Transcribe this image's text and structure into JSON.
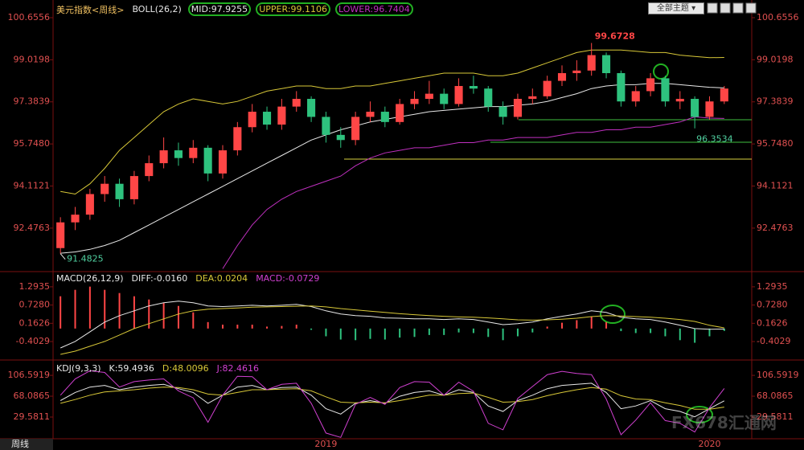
{
  "chart_data": [
    {
      "type": "candlestick",
      "title": "美元指数<周线>",
      "indicator": "BOLL(26,2)",
      "categories": [
        null,
        null,
        null,
        null,
        null,
        null,
        null,
        null,
        null,
        null,
        null,
        null,
        null,
        null,
        null,
        null,
        null,
        null,
        "2019",
        null,
        null,
        null,
        null,
        null,
        null,
        null,
        null,
        null,
        null,
        null,
        null,
        null,
        null,
        null,
        null,
        null,
        null,
        null,
        null,
        null,
        null,
        null,
        null,
        null,
        "2020",
        null
      ],
      "candles": [
        [
          91.7,
          92.9,
          91.4825,
          92.7
        ],
        [
          92.7,
          93.3,
          92.4,
          93.0
        ],
        [
          93.0,
          94.0,
          92.8,
          93.8
        ],
        [
          93.8,
          94.5,
          93.5,
          94.2
        ],
        [
          94.2,
          94.4,
          93.3,
          93.6
        ],
        [
          93.6,
          94.7,
          93.4,
          94.5
        ],
        [
          94.5,
          95.3,
          94.3,
          95.0
        ],
        [
          95.0,
          96.0,
          94.8,
          95.5
        ],
        [
          95.5,
          95.8,
          94.9,
          95.2
        ],
        [
          95.2,
          95.9,
          95.0,
          95.6
        ],
        [
          95.6,
          95.7,
          94.3,
          94.6
        ],
        [
          94.6,
          95.7,
          94.4,
          95.5
        ],
        [
          95.5,
          96.6,
          95.3,
          96.4
        ],
        [
          96.4,
          97.3,
          96.2,
          97.0
        ],
        [
          97.0,
          97.2,
          96.3,
          96.5
        ],
        [
          96.5,
          97.5,
          96.3,
          97.2
        ],
        [
          97.2,
          97.8,
          97.0,
          97.5
        ],
        [
          97.5,
          97.6,
          96.6,
          96.8
        ],
        [
          96.8,
          97.0,
          95.8,
          96.1
        ],
        [
          96.1,
          96.4,
          95.6,
          95.9
        ],
        [
          95.9,
          97.0,
          95.7,
          96.8
        ],
        [
          96.8,
          97.4,
          96.6,
          97.0
        ],
        [
          97.0,
          97.2,
          96.4,
          96.6
        ],
        [
          96.6,
          97.5,
          96.5,
          97.3
        ],
        [
          97.3,
          97.8,
          97.1,
          97.5
        ],
        [
          97.5,
          98.2,
          97.3,
          97.7
        ],
        [
          97.7,
          97.9,
          97.1,
          97.3
        ],
        [
          97.3,
          98.3,
          97.2,
          98.0
        ],
        [
          98.0,
          98.4,
          97.7,
          97.9
        ],
        [
          97.9,
          98.0,
          97.0,
          97.2
        ],
        [
          97.2,
          97.4,
          96.5,
          96.8
        ],
        [
          96.8,
          97.7,
          96.7,
          97.5
        ],
        [
          97.5,
          97.9,
          97.3,
          97.6
        ],
        [
          97.6,
          98.4,
          97.5,
          98.2
        ],
        [
          98.2,
          98.8,
          98.0,
          98.5
        ],
        [
          98.5,
          99.0,
          98.2,
          98.6
        ],
        [
          98.6,
          99.6728,
          98.4,
          99.2
        ],
        [
          99.2,
          99.3,
          98.3,
          98.5
        ],
        [
          98.5,
          98.6,
          97.2,
          97.4
        ],
        [
          97.4,
          98.0,
          97.2,
          97.8
        ],
        [
          97.8,
          98.5,
          97.6,
          98.3
        ],
        [
          98.3,
          98.4,
          97.2,
          97.4
        ],
        [
          97.4,
          97.8,
          97.1,
          97.5
        ],
        [
          97.5,
          97.6,
          96.3534,
          96.8
        ],
        [
          96.8,
          97.6,
          96.7,
          97.4
        ],
        [
          97.4,
          98.0,
          97.3,
          97.9
        ]
      ],
      "series": [
        {
          "name": "MID:97.9255",
          "color": "#e8e8e8",
          "values": [
            91.5,
            91.55,
            91.65,
            91.8,
            92.0,
            92.3,
            92.6,
            92.9,
            93.2,
            93.5,
            93.8,
            94.1,
            94.4,
            94.7,
            95.0,
            95.3,
            95.6,
            95.9,
            96.1,
            96.3,
            96.45,
            96.6,
            96.7,
            96.8,
            96.9,
            97.0,
            97.05,
            97.1,
            97.15,
            97.2,
            97.2,
            97.25,
            97.3,
            97.4,
            97.55,
            97.7,
            97.9,
            98.0,
            98.05,
            98.05,
            98.1,
            98.1,
            98.05,
            98.0,
            97.95,
            97.9255
          ]
        },
        {
          "name": "UPPER:99.1106",
          "color": "#d8c838",
          "values": [
            93.9,
            93.8,
            94.2,
            94.8,
            95.5,
            96.0,
            96.5,
            97.0,
            97.3,
            97.5,
            97.4,
            97.3,
            97.4,
            97.6,
            97.8,
            97.9,
            98.0,
            98.0,
            97.9,
            97.9,
            98.0,
            98.0,
            98.1,
            98.2,
            98.3,
            98.4,
            98.5,
            98.5,
            98.5,
            98.4,
            98.4,
            98.5,
            98.7,
            98.9,
            99.1,
            99.3,
            99.4,
            99.4,
            99.4,
            99.35,
            99.3,
            99.3,
            99.2,
            99.15,
            99.1,
            99.1106
          ]
        },
        {
          "name": "LOWER:96.7404",
          "color": "#c030c0",
          "values": [
            null,
            null,
            null,
            null,
            null,
            null,
            null,
            null,
            null,
            null,
            null,
            90.9,
            91.8,
            92.6,
            93.2,
            93.6,
            93.9,
            94.1,
            94.3,
            94.5,
            94.9,
            95.2,
            95.4,
            95.5,
            95.6,
            95.6,
            95.7,
            95.8,
            95.8,
            95.9,
            95.9,
            96.0,
            96.0,
            96.0,
            96.1,
            96.2,
            96.2,
            96.3,
            96.3,
            96.4,
            96.4,
            96.5,
            96.6,
            96.8,
            96.75,
            96.7404
          ]
        }
      ],
      "up_color": "#ff4646",
      "down_color": "#2ec27e",
      "ylim": [
        90.88,
        101.03
      ],
      "yticks": [
        100.6556,
        99.0198,
        97.3839,
        {
          "value": 95.748,
          "label": "95.7480"
        },
        94.1121,
        92.4763
      ]
    },
    {
      "type": "macd",
      "title": "MACD(26,12,9)",
      "series": [
        {
          "name": "DIFF:-0.0160",
          "color": "#e8e8e8",
          "values": [
            -0.6,
            -0.4,
            -0.1,
            0.2,
            0.4,
            0.55,
            0.7,
            0.8,
            0.85,
            0.8,
            0.7,
            0.68,
            0.7,
            0.72,
            0.7,
            0.72,
            0.75,
            0.68,
            0.55,
            0.45,
            0.4,
            0.38,
            0.33,
            0.32,
            0.3,
            0.3,
            0.28,
            0.3,
            0.28,
            0.2,
            0.12,
            0.15,
            0.2,
            0.3,
            0.38,
            0.45,
            0.55,
            0.5,
            0.35,
            0.3,
            0.28,
            0.2,
            0.1,
            0.0,
            -0.02,
            -0.016
          ]
        },
        {
          "name": "DEA:0.0204",
          "color": "#d8c838",
          "values": [
            -0.8,
            -0.7,
            -0.55,
            -0.4,
            -0.2,
            0.0,
            0.15,
            0.3,
            0.45,
            0.55,
            0.6,
            0.62,
            0.64,
            0.66,
            0.67,
            0.68,
            0.69,
            0.7,
            0.67,
            0.62,
            0.58,
            0.54,
            0.5,
            0.46,
            0.43,
            0.4,
            0.38,
            0.36,
            0.35,
            0.33,
            0.3,
            0.27,
            0.26,
            0.27,
            0.29,
            0.32,
            0.37,
            0.4,
            0.39,
            0.37,
            0.35,
            0.32,
            0.28,
            0.22,
            0.1,
            0.0204
          ]
        },
        {
          "name": "MACD:-0.0729",
          "color": "#d040d0",
          "style": "bar",
          "values": [
            1.0,
            1.2,
            1.3,
            1.2,
            1.1,
            1.0,
            0.9,
            0.8,
            0.7,
            0.5,
            0.2,
            0.12,
            0.12,
            0.12,
            0.06,
            0.08,
            0.12,
            -0.04,
            -0.24,
            -0.34,
            -0.36,
            -0.32,
            -0.34,
            -0.28,
            -0.26,
            -0.2,
            -0.2,
            -0.12,
            -0.14,
            -0.26,
            -0.36,
            -0.24,
            -0.12,
            0.06,
            0.18,
            0.26,
            0.36,
            0.2,
            -0.08,
            -0.14,
            -0.14,
            -0.24,
            -0.36,
            -0.44,
            -0.24,
            -0.0729
          ]
        }
      ],
      "up_color": "#ff4646",
      "down_color": "#2ec27e",
      "ylim": [
        -0.9,
        1.59
      ],
      "yticks": [
        1.2935,
        {
          "value": 0.728,
          "label": "0.7280"
        },
        0.1626,
        -0.4029
      ]
    },
    {
      "type": "line",
      "title": "KDJ(9,3,3)",
      "series": [
        {
          "name": "K:59.4936",
          "color": "#e8e8e8",
          "values": [
            60,
            75,
            85,
            88,
            80,
            85,
            88,
            90,
            82,
            75,
            55,
            70,
            85,
            88,
            80,
            84,
            85,
            70,
            45,
            35,
            55,
            60,
            55,
            68,
            75,
            78,
            70,
            80,
            75,
            50,
            40,
            60,
            70,
            82,
            88,
            90,
            92,
            75,
            45,
            50,
            60,
            45,
            40,
            30,
            45,
            59.4936
          ]
        },
        {
          "name": "D:48.0096",
          "color": "#d8c838",
          "values": [
            55,
            62,
            70,
            76,
            78,
            80,
            83,
            85,
            84,
            80,
            72,
            70,
            75,
            80,
            80,
            81,
            82,
            78,
            67,
            57,
            56,
            57,
            56,
            60,
            65,
            70,
            70,
            73,
            74,
            66,
            57,
            58,
            62,
            69,
            75,
            80,
            84,
            81,
            69,
            63,
            62,
            56,
            51,
            44,
            44,
            48.0096
          ]
        },
        {
          "name": "J:82.4616",
          "color": "#d040d0",
          "values": [
            70,
            100,
            115,
            112,
            85,
            95,
            98,
            100,
            78,
            65,
            20,
            70,
            105,
            104,
            80,
            90,
            92,
            55,
            0,
            -8,
            53,
            66,
            53,
            84,
            95,
            94,
            70,
            94,
            77,
            18,
            6,
            64,
            86,
            108,
            114,
            110,
            108,
            63,
            -3,
            24,
            56,
            23,
            18,
            2,
            47,
            82.4616
          ]
        }
      ],
      "ylim": [
        -9,
        129
      ],
      "yticks": [
        106.5919,
        68.0865,
        29.5811
      ]
    }
  ],
  "ui": {
    "theme_button": "全部主题",
    "period_tab": "周线",
    "watermark": "FX678汇通网"
  }
}
